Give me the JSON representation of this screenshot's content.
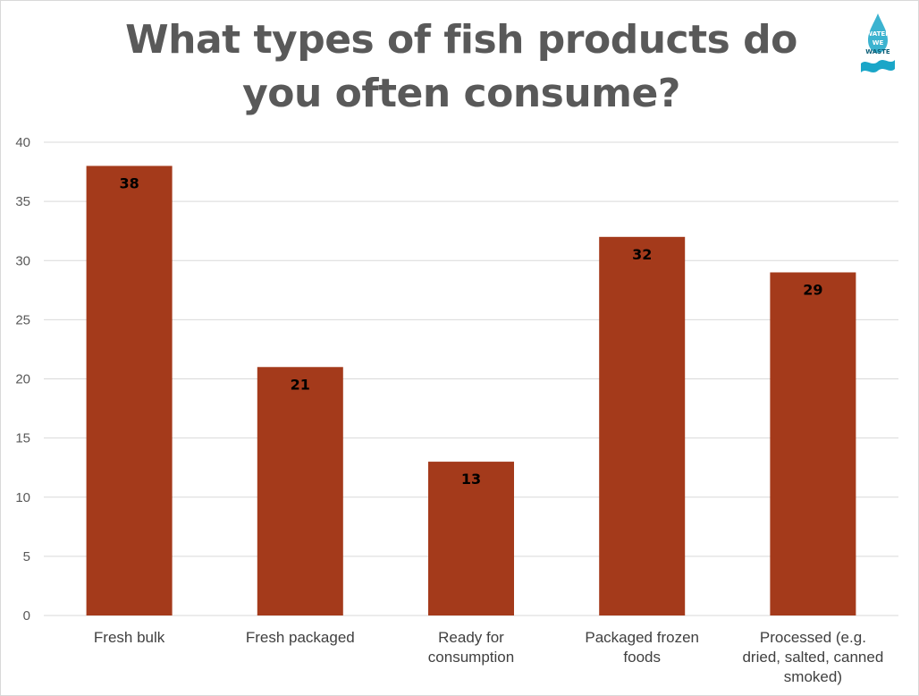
{
  "colors": {
    "bar": "#A43A1B",
    "grid": "#d9d9d9",
    "title": "#595959",
    "axis_text": "#595959",
    "logo": "#1aa6c8"
  },
  "logo": {
    "icon": "water-drop-logo-icon",
    "lines": [
      "WATER",
      "WE",
      "WASTE"
    ]
  },
  "chart_data": {
    "type": "bar",
    "title": "What types of fish products do you often consume?",
    "categories": [
      [
        "Fresh bulk"
      ],
      [
        "Fresh packaged"
      ],
      [
        "Ready for",
        "consumption"
      ],
      [
        "Packaged frozen",
        "foods"
      ],
      [
        "Processed (e.g.",
        "dried, salted, canned",
        "smoked)"
      ]
    ],
    "values": [
      38,
      21,
      13,
      32,
      29
    ],
    "data_labels": [
      "38",
      "21",
      "13",
      "32",
      "29"
    ],
    "y_ticks": [
      0,
      5,
      10,
      15,
      20,
      25,
      30,
      35,
      40
    ],
    "ylim": [
      0,
      40
    ],
    "xlabel": "",
    "ylabel": "",
    "grid": true,
    "legend": "none"
  }
}
